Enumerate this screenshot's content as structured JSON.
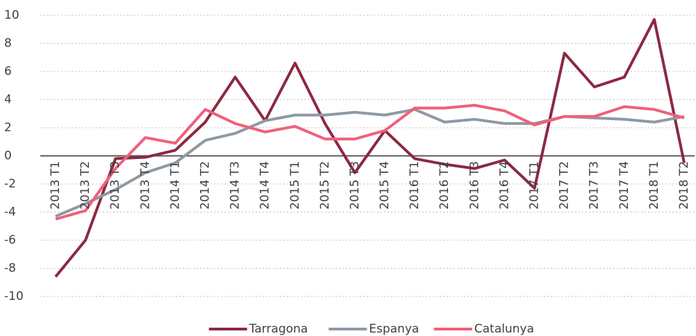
{
  "chart_data": {
    "type": "line",
    "categories": [
      "2013 T1",
      "2013 T2",
      "2013 T3",
      "2013 T4",
      "2014 T1",
      "2014 T2",
      "2014 T3",
      "2014 T4",
      "2015 T1",
      "2015 T2",
      "2015 T3",
      "2015 T4",
      "2016 T1",
      "2016 T2",
      "2016 T3",
      "2016 T4",
      "2017 T1",
      "2017 T2",
      "2017 T3",
      "2017 T4",
      "2018 T1",
      "2018 T2"
    ],
    "series": [
      {
        "name": "Tarragona",
        "color": "#8b2942",
        "values": [
          -8.6,
          -6.0,
          -0.2,
          -0.1,
          0.4,
          2.4,
          5.6,
          2.5,
          6.6,
          2.3,
          -1.2,
          1.8,
          -0.2,
          -0.6,
          -0.9,
          -0.3,
          -2.3,
          7.3,
          4.9,
          5.6,
          9.7,
          -0.5
        ]
      },
      {
        "name": "Espanya",
        "color": "#8e99a3",
        "values": [
          -4.3,
          -3.4,
          -2.4,
          -1.2,
          -0.5,
          1.1,
          1.6,
          2.5,
          2.9,
          2.9,
          3.1,
          2.9,
          3.3,
          2.4,
          2.6,
          2.3,
          2.3,
          2.8,
          2.7,
          2.6,
          2.4,
          2.8
        ]
      },
      {
        "name": "Catalunya",
        "color": "#f0607a",
        "values": [
          -4.5,
          -3.9,
          -0.9,
          1.3,
          0.9,
          3.3,
          2.3,
          1.7,
          2.1,
          1.2,
          1.2,
          1.8,
          3.4,
          3.4,
          3.6,
          3.2,
          2.2,
          2.8,
          2.8,
          3.5,
          3.3,
          2.7
        ]
      }
    ],
    "ylim": [
      -10,
      10
    ],
    "yticks": [
      -10,
      -8,
      -6,
      -4,
      -2,
      0,
      2,
      4,
      6,
      8,
      10
    ],
    "grid": true,
    "legend": "bottom"
  }
}
